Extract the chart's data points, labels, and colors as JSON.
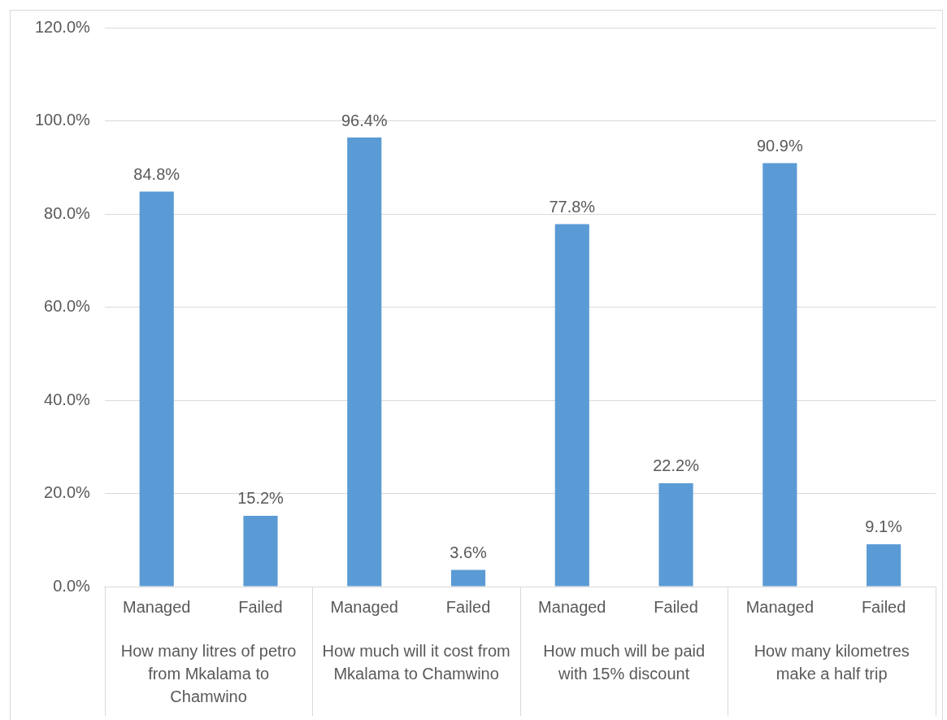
{
  "chart_data": {
    "type": "bar",
    "categories": [
      "Managed",
      "Failed",
      "Managed",
      "Failed",
      "Managed",
      "Failed",
      "Managed",
      "Failed"
    ],
    "values": [
      84.8,
      15.2,
      96.4,
      3.6,
      77.8,
      22.2,
      90.9,
      9.1
    ],
    "value_labels": [
      "84.8%",
      "15.2%",
      "96.4%",
      "3.6%",
      "77.8%",
      "22.2%",
      "90.9%",
      "9.1%"
    ],
    "color": "#5b9bd5",
    "ylim": [
      0,
      120
    ],
    "yticks": [
      {
        "value": 0,
        "label": "0.0%"
      },
      {
        "value": 20,
        "label": "20.0%"
      },
      {
        "value": 40,
        "label": "40.0%"
      },
      {
        "value": 60,
        "label": "60.0%"
      },
      {
        "value": 80,
        "label": "80.0%"
      },
      {
        "value": 100,
        "label": "100.0%"
      },
      {
        "value": 120,
        "label": "120.0%"
      }
    ],
    "grid": "y",
    "legend": false,
    "annotations": [
      "How many litres of petro from Mkalama to Chamwino",
      "How much will it cost from Mkalama to Chamwino",
      "How much will be paid with 15% discount",
      "How many kilometres make a half trip"
    ]
  }
}
